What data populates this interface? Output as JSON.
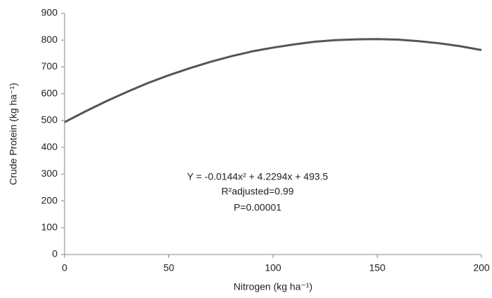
{
  "chart_data": {
    "type": "line",
    "x_label": "Nitrogen (kg ha⁻¹)",
    "y_label": "Crude Protein (kg ha⁻¹)",
    "annotations": [
      "Y = -0.0144x² + 4.2294x + 493.5",
      "R²adjusted=0.99",
      "P=0.00001"
    ],
    "x": [
      0,
      10,
      20,
      30,
      40,
      50,
      60,
      70,
      80,
      90,
      100,
      110,
      120,
      130,
      140,
      150,
      160,
      170,
      180,
      190,
      200
    ],
    "values": [
      494,
      534,
      572,
      607,
      640,
      669,
      695,
      719,
      740,
      758,
      772,
      784,
      794,
      800,
      803,
      804,
      802,
      796,
      788,
      777,
      763
    ],
    "color": "#555555",
    "xlim": [
      0,
      200
    ],
    "xticks": [
      0,
      50,
      100,
      150,
      200
    ],
    "ylim": [
      0,
      900
    ],
    "yticks": [
      0,
      100,
      200,
      300,
      400,
      500,
      600,
      700,
      800,
      900
    ]
  }
}
